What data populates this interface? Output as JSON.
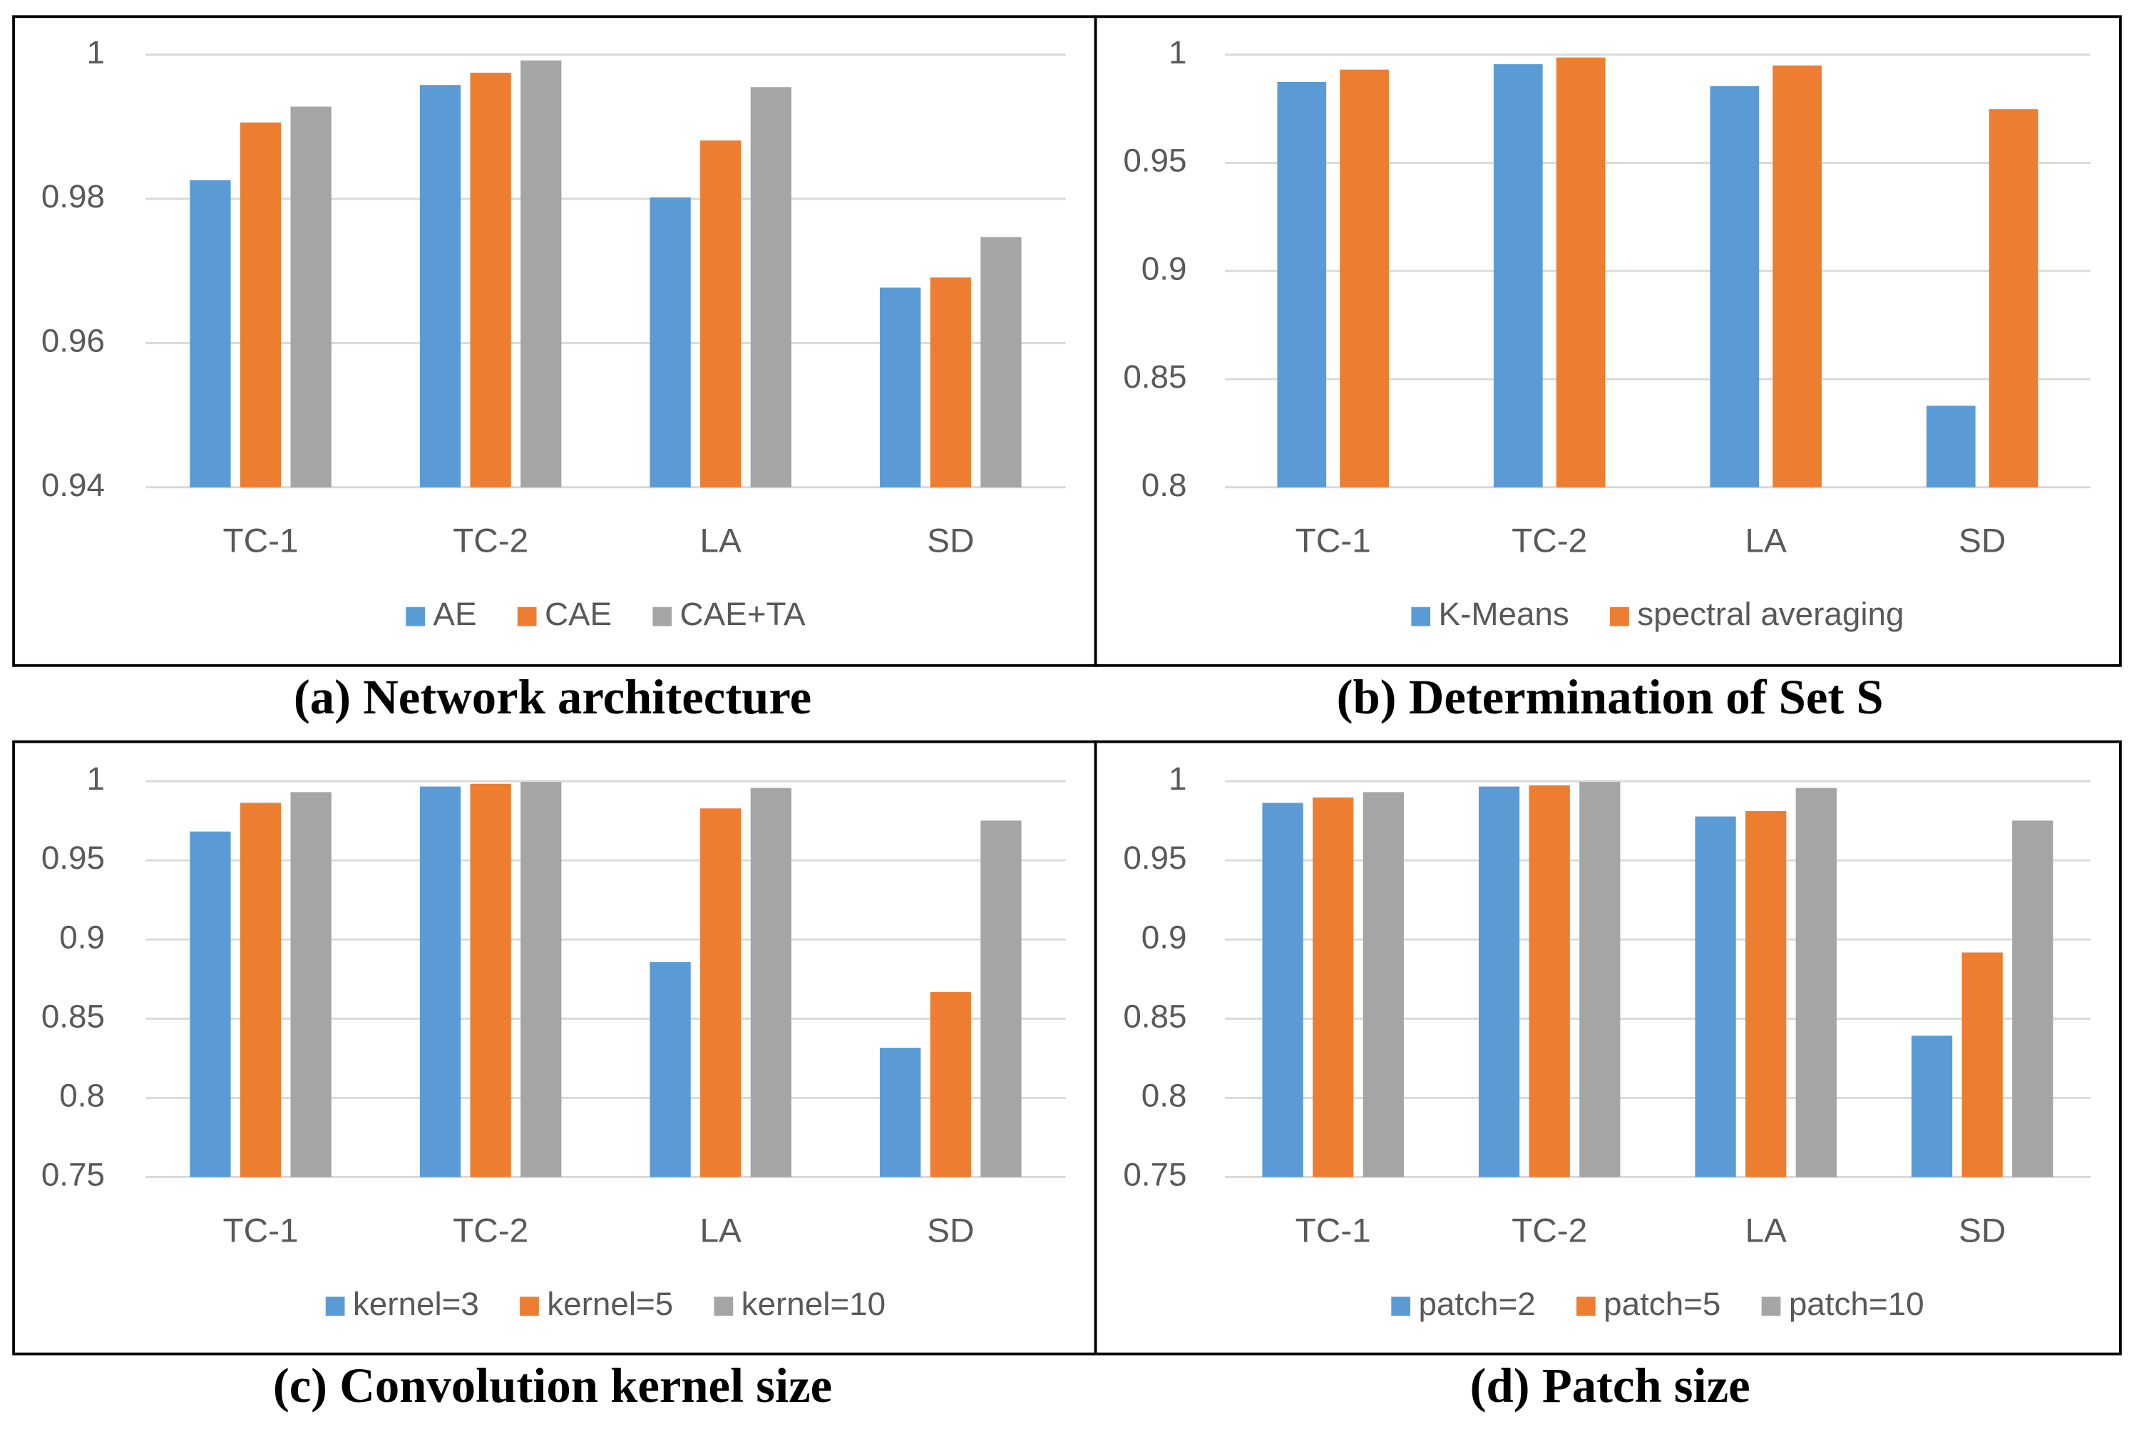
{
  "chart_data": [
    {
      "type": "bar",
      "title": "(a) Network architecture",
      "categories": [
        "TC-1",
        "TC-2",
        "LA",
        "SD"
      ],
      "series": [
        {
          "name": "AE",
          "color": "#5b9bd5",
          "values": [
            0.9826,
            0.9958,
            0.9802,
            0.9677
          ]
        },
        {
          "name": "CAE",
          "color": "#ed7d31",
          "values": [
            0.9906,
            0.9975,
            0.9881,
            0.9691
          ]
        },
        {
          "name": "CAE+TA",
          "color": "#a5a5a5",
          "values": [
            0.9928,
            0.9992,
            0.9955,
            0.9747
          ]
        }
      ],
      "ylim": [
        0.94,
        1
      ],
      "yticks": [
        0.94,
        0.96,
        0.98,
        1
      ],
      "grid": true,
      "legend": "bottom"
    },
    {
      "type": "bar",
      "title": "(b) Determination of Set S",
      "categories": [
        "TC-1",
        "TC-2",
        "LA",
        "SD"
      ],
      "series": [
        {
          "name": "K-Means",
          "color": "#5b9bd5",
          "values": [
            0.9874,
            0.9956,
            0.9855,
            0.8377
          ]
        },
        {
          "name": "spectral averaging",
          "color": "#ed7d31",
          "values": [
            0.9931,
            0.9987,
            0.995,
            0.9748
          ]
        }
      ],
      "ylim": [
        0.8,
        1
      ],
      "yticks": [
        0.8,
        0.85,
        0.9,
        0.95,
        1
      ],
      "grid": true,
      "legend": "bottom"
    },
    {
      "type": "bar",
      "title": "(c) Convolution kernel size",
      "categories": [
        "TC-1",
        "TC-2",
        "LA",
        "SD"
      ],
      "series": [
        {
          "name": "kernel=3",
          "color": "#5b9bd5",
          "values": [
            0.9682,
            0.9966,
            0.8857,
            0.8316
          ]
        },
        {
          "name": "kernel=5",
          "color": "#ed7d31",
          "values": [
            0.9863,
            0.9983,
            0.9828,
            0.8668
          ]
        },
        {
          "name": "kernel=10",
          "color": "#a5a5a5",
          "values": [
            0.9931,
            0.9995,
            0.9957,
            0.9751
          ]
        }
      ],
      "ylim": [
        0.75,
        1
      ],
      "yticks": [
        0.75,
        0.8,
        0.85,
        0.9,
        0.95,
        1
      ],
      "grid": true,
      "legend": "bottom"
    },
    {
      "type": "bar",
      "title": "(d) Patch size",
      "categories": [
        "TC-1",
        "TC-2",
        "LA",
        "SD"
      ],
      "series": [
        {
          "name": "patch=2",
          "color": "#5b9bd5",
          "values": [
            0.9863,
            0.9966,
            0.9777,
            0.8393
          ]
        },
        {
          "name": "patch=5",
          "color": "#ed7d31",
          "values": [
            0.9897,
            0.9974,
            0.9811,
            0.8918
          ]
        },
        {
          "name": "patch=10",
          "color": "#a5a5a5",
          "values": [
            0.9931,
            0.9995,
            0.9957,
            0.9751
          ]
        }
      ],
      "ylim": [
        0.75,
        1
      ],
      "yticks": [
        0.75,
        0.8,
        0.85,
        0.9,
        0.95,
        1
      ],
      "grid": true,
      "legend": "bottom"
    }
  ]
}
